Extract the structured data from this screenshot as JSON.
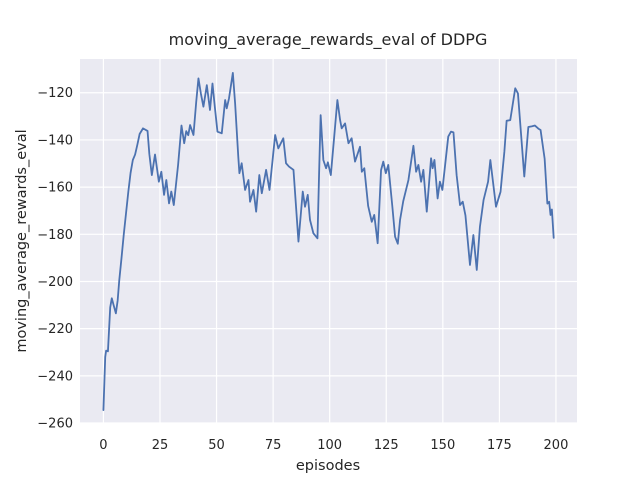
{
  "figure": {
    "background_color": "#ffffff"
  },
  "chart_data": {
    "type": "line",
    "title": "moving_average_rewards_eval of DDPG",
    "xlabel": "episodes",
    "ylabel": "moving_average_rewards_eval",
    "grid": true,
    "legend": "none",
    "axes_background_color": "#eaeaf2",
    "grid_color": "#ffffff",
    "line_color": "#4c72b0",
    "text_color": "#262626",
    "xlim": [
      -10.35,
      209.3
    ],
    "ylim": [
      -260.2,
      -105.7
    ],
    "x_tick_values": [
      0,
      25,
      50,
      75,
      100,
      125,
      150,
      175,
      200
    ],
    "x_tick_labels": [
      "0",
      "25",
      "50",
      "75",
      "100",
      "125",
      "150",
      "175",
      "200"
    ],
    "y_tick_values": [
      -120,
      -140,
      -160,
      -180,
      -200,
      -220,
      -240,
      -260
    ],
    "y_tick_labels": [
      "−120",
      "−140",
      "−160",
      "−180",
      "−200",
      "−220",
      "−240",
      "−260"
    ],
    "series": [
      {
        "name": "moving_average_rewards_eval",
        "x": [
          0,
          0.8,
          1.2,
          2,
          3,
          3.7,
          4.5,
          5.5,
          6.3,
          7,
          8,
          9,
          10,
          11,
          12,
          13,
          14,
          15,
          16,
          17.5,
          19.5,
          20.3,
          21.4,
          22.8,
          24.5,
          25.6,
          26.8,
          27.8,
          29,
          30,
          31.1,
          33,
          34.5,
          35.7,
          36.6,
          37.5,
          38.3,
          39.8,
          41,
          42,
          43.1,
          44.2,
          45.7,
          47.1,
          48.2,
          49.3,
          50.4,
          52.3,
          53.8,
          54.5,
          55.5,
          57.2,
          58.2,
          59.6,
          60.1,
          61.1,
          62.6,
          64.1,
          64.8,
          66.3,
          67.5,
          68.9,
          70,
          71.9,
          73.4,
          75.9,
          77.3,
          79.5,
          80.7,
          82,
          84,
          86.2,
          88.1,
          89.1,
          90.3,
          91.3,
          92.8,
          94.6,
          95.3,
          96,
          97.2,
          98.4,
          99.2,
          100.5,
          102,
          103.4,
          104.6,
          105.3,
          106.8,
          108.3,
          109.7,
          111.2,
          113.4,
          114.2,
          115.3,
          117,
          118.6,
          119.7,
          121.2,
          122.7,
          123.7,
          124.8,
          125.9,
          127.7,
          128.9,
          130.1,
          131.1,
          132.5,
          134.8,
          137,
          138.2,
          139.2,
          140.4,
          141.4,
          142.9,
          144.8,
          145.5,
          146.3,
          147.7,
          148.7,
          149.8,
          152.4,
          153.6,
          154.7,
          156.1,
          157.6,
          158.8,
          160,
          162,
          163.5,
          165,
          166.4,
          168,
          170,
          171,
          173.5,
          175.5,
          176.5,
          177.2,
          178.2,
          179.8,
          180.8,
          182,
          183.2,
          184.1,
          186,
          187.8,
          189.5,
          190.7,
          192.2,
          193.2,
          195,
          196.2,
          197,
          197.6,
          198.2,
          199
        ],
        "y": [
          -254.5,
          -232,
          -229.3,
          -229.6,
          -211,
          -207.1,
          -210,
          -213.5,
          -208,
          -199.5,
          -190,
          -180,
          -171,
          -162,
          -154,
          -148.5,
          -146.2,
          -142,
          -137.5,
          -135.1,
          -136.2,
          -146,
          -154.9,
          -146.2,
          -157.7,
          -153.5,
          -163.3,
          -157,
          -166.9,
          -161.9,
          -167.6,
          -150.6,
          -133.9,
          -141.4,
          -136.3,
          -138,
          -133.7,
          -137.9,
          -124,
          -113.9,
          -120.5,
          -125.9,
          -116.8,
          -127.3,
          -116.1,
          -126.6,
          -136.5,
          -137.2,
          -123.1,
          -126.6,
          -122.4,
          -111.6,
          -124.5,
          -147.1,
          -154.1,
          -149.9,
          -161.2,
          -157,
          -166.2,
          -161.2,
          -170.4,
          -154.9,
          -162.6,
          -152.7,
          -161.2,
          -137.9,
          -143.6,
          -139.3,
          -149.9,
          -151.3,
          -152.7,
          -183.1,
          -161.9,
          -168.3,
          -163.3,
          -173.9,
          -179.6,
          -181.7,
          -155,
          -129.5,
          -148.5,
          -152,
          -149.5,
          -154.9,
          -138.6,
          -123.1,
          -131.6,
          -135.1,
          -133,
          -141.4,
          -139.3,
          -149.2,
          -142.9,
          -153.5,
          -152,
          -168,
          -174.7,
          -171.8,
          -183.8,
          -152.8,
          -149.2,
          -154.1,
          -150.6,
          -168.3,
          -181,
          -184,
          -173.9,
          -166,
          -157,
          -142.5,
          -153.5,
          -150.6,
          -157.7,
          -152.7,
          -170.4,
          -147.8,
          -152,
          -148.5,
          -164.8,
          -157.7,
          -161.2,
          -138.6,
          -136.5,
          -136.8,
          -154.9,
          -167.6,
          -166.2,
          -172,
          -193,
          -180.3,
          -195.1,
          -176.8,
          -165.5,
          -157.7,
          -148.5,
          -168.3,
          -162,
          -152,
          -145,
          -131.9,
          -131.6,
          -125.5,
          -118.1,
          -120.3,
          -131.6,
          -155.5,
          -134.5,
          -134.2,
          -133.9,
          -135.2,
          -135.8,
          -148,
          -167,
          -166.2,
          -171.8,
          -169.5,
          -181.5
        ]
      }
    ]
  }
}
